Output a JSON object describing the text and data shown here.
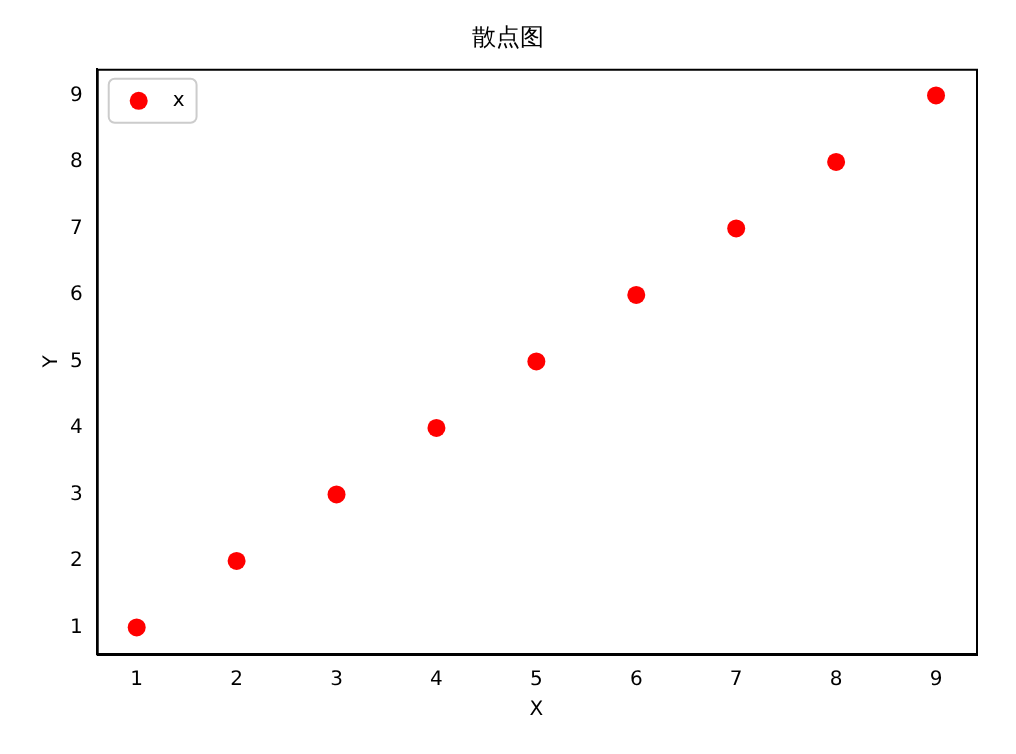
{
  "chart_data": {
    "type": "scatter",
    "title": "散点图",
    "xlabel": "X",
    "ylabel": "Y",
    "x": [
      1,
      2,
      3,
      4,
      5,
      6,
      7,
      8,
      9
    ],
    "series": [
      {
        "name": "x",
        "color": "#ff0000",
        "values": [
          1,
          2,
          3,
          4,
          5,
          6,
          7,
          8,
          9
        ]
      }
    ],
    "xlim": [
      0.6,
      9.4
    ],
    "ylim": [
      0.6,
      9.4
    ],
    "xticks": [
      1,
      2,
      3,
      4,
      5,
      6,
      7,
      8,
      9
    ],
    "yticks": [
      1,
      2,
      3,
      4,
      5,
      6,
      7,
      8,
      9
    ],
    "grid": false,
    "legend": "top left",
    "marker": "circle"
  }
}
